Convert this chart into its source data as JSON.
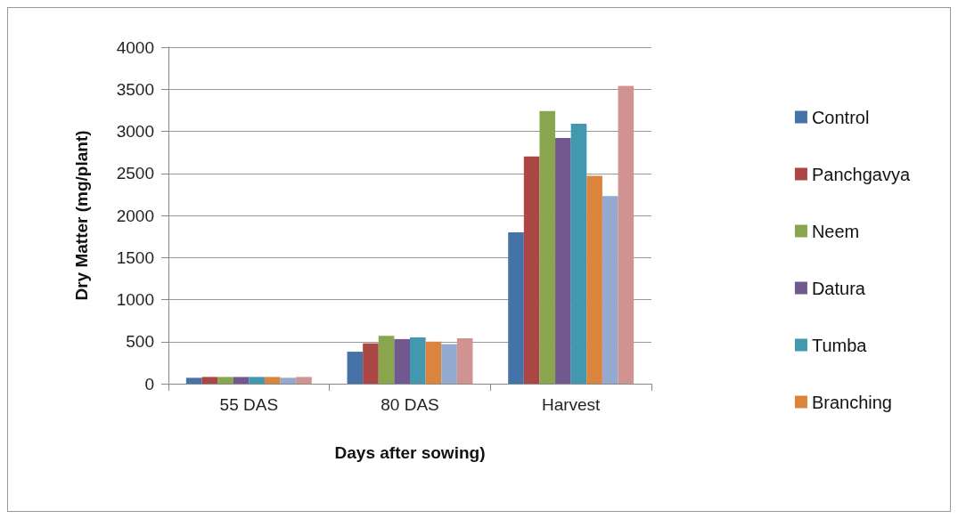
{
  "chart_data": {
    "type": "bar",
    "xlabel": "Days after sowing)",
    "ylabel": "Dry Matter (mg/plant)",
    "categories": [
      "55 DAS",
      "80 DAS",
      "Harvest"
    ],
    "series": [
      {
        "name": "Control",
        "color": "#4572a7",
        "values": [
          70,
          380,
          1800
        ]
      },
      {
        "name": "Panchgavya",
        "color": "#aa4643",
        "values": [
          80,
          480,
          2700
        ]
      },
      {
        "name": "Neem",
        "color": "#89a54e",
        "values": [
          80,
          570,
          3240
        ]
      },
      {
        "name": "Datura",
        "color": "#71588f",
        "values": [
          80,
          530,
          2920
        ]
      },
      {
        "name": "Tumba",
        "color": "#4198af",
        "values": [
          80,
          550,
          3090
        ]
      },
      {
        "name": "Branching",
        "color": "#db843d",
        "values": [
          80,
          500,
          2470
        ]
      },
      {
        "color": "#93a9cf",
        "values": [
          70,
          470,
          2230
        ]
      },
      {
        "color": "#d09392",
        "values": [
          80,
          540,
          3540
        ]
      }
    ],
    "ylim": [
      0,
      4000
    ],
    "yticks": [
      0,
      500,
      1000,
      1500,
      2000,
      2500,
      3000,
      3500,
      4000
    ],
    "grid": "y",
    "legend": "right"
  }
}
